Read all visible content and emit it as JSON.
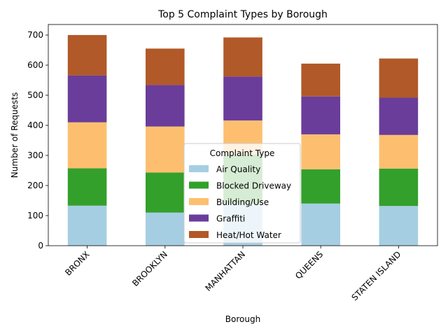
{
  "chart_data": {
    "type": "bar",
    "stacked": true,
    "title": "Top 5 Complaint Types by Borough",
    "xlabel": "Borough",
    "ylabel": "Number of Requests",
    "categories": [
      "BRONX",
      "BROOKLYN",
      "MANHATTAN",
      "QUEENS",
      "STATEN ISLAND"
    ],
    "ylim": [
      0,
      735
    ],
    "yticks": [
      0,
      100,
      200,
      300,
      400,
      500,
      600,
      700
    ],
    "grid": false,
    "legend": {
      "title": "Complaint Type",
      "placement": "lower-center"
    },
    "series": [
      {
        "name": "Air Quality",
        "color": "#a6cee3",
        "values": [
          133,
          110,
          140,
          140,
          132
        ]
      },
      {
        "name": "Blocked Driveway",
        "color": "#33a02c",
        "values": [
          124,
          133,
          163,
          114,
          124
        ]
      },
      {
        "name": "Building/Use",
        "color": "#fdbf6f",
        "values": [
          153,
          153,
          113,
          116,
          112
        ]
      },
      {
        "name": "Graffiti",
        "color": "#6a3d9a",
        "values": [
          156,
          138,
          146,
          126,
          124
        ]
      },
      {
        "name": "Heat/Hot Water",
        "color": "#b15928",
        "values": [
          134,
          121,
          130,
          109,
          130
        ]
      }
    ]
  }
}
